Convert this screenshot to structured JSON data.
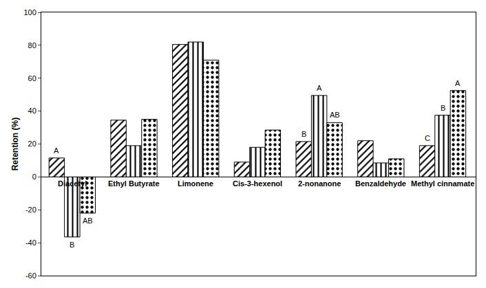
{
  "chart_data": {
    "type": "bar",
    "y_label": "Retention (%)",
    "categories": [
      "Diacetyl",
      "Ethyl Butyrate",
      "Limonene",
      "Cis-3-hexenol",
      "2-nonanone",
      "Benzaldehyde",
      "Methyl cinnamate"
    ],
    "series": [
      {
        "color": "#000000",
        "values": [
          11.5,
          34.5,
          80.5,
          9,
          21.5,
          22,
          19
        ],
        "annotations": [
          "A",
          null,
          null,
          null,
          "B",
          null,
          "C"
        ]
      },
      {
        "color": "#000000",
        "values": [
          -36.5,
          19,
          82,
          18,
          49.5,
          8.5,
          37.5
        ],
        "annotations": [
          "B",
          null,
          null,
          null,
          "A",
          null,
          "B"
        ]
      },
      {
        "color": "#000000",
        "values": [
          -22,
          35,
          71,
          28.5,
          33,
          11,
          52.5
        ],
        "annotations": [
          "AB",
          null,
          null,
          null,
          "AB",
          null,
          "A"
        ]
      }
    ],
    "ylim": [
      -60,
      100
    ],
    "yticks": [
      -60,
      -40,
      -20,
      0,
      20,
      40,
      60,
      80,
      100
    ],
    "grid": false
  }
}
